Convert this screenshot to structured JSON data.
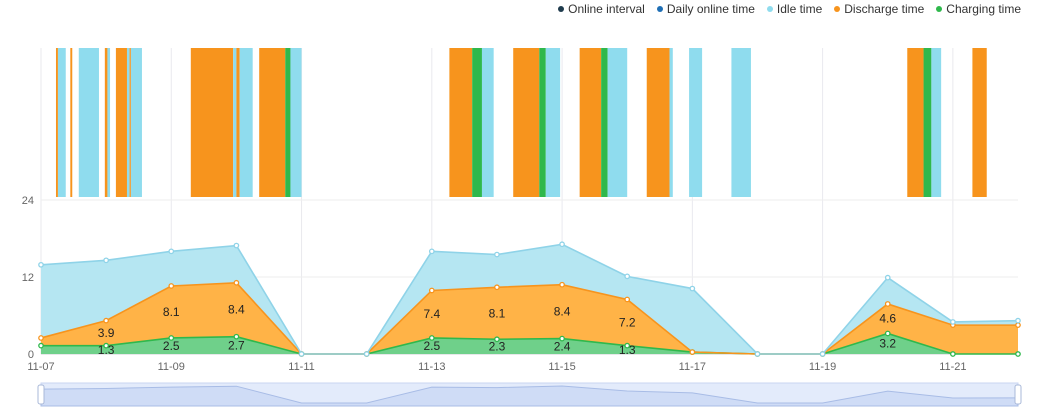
{
  "legend": {
    "items": [
      {
        "label": "Online interval",
        "color": "#1f3b4d"
      },
      {
        "label": "Daily online time",
        "color": "#1f6fb5"
      },
      {
        "label": "Idle time",
        "color": "#8fdcee"
      },
      {
        "label": "Discharge time",
        "color": "#f7941d"
      },
      {
        "label": "Charging time",
        "color": "#2fb84c"
      }
    ]
  },
  "chart_data": {
    "type": "area",
    "title": "",
    "x": [
      "11-07",
      "11-08",
      "11-09",
      "11-10",
      "11-11",
      "11-12",
      "11-13",
      "11-14",
      "11-15",
      "11-16",
      "11-17",
      "11-18",
      "11-19",
      "11-20",
      "11-21",
      "11-22"
    ],
    "x_tick_labels": [
      "11-07",
      "11-09",
      "11-11",
      "11-13",
      "11-15",
      "11-17",
      "11-19",
      "11-21"
    ],
    "ylim": [
      0,
      24
    ],
    "y_tick_labels": [
      "0",
      "12",
      "24"
    ],
    "series": [
      {
        "name": "Charging time",
        "color": "#2fb84c",
        "values": [
          1.3,
          1.3,
          2.5,
          2.7,
          0,
          0,
          2.5,
          2.3,
          2.4,
          1.3,
          0.3,
          0,
          0,
          3.2,
          0,
          0
        ]
      },
      {
        "name": "Discharge time",
        "color": "#f7941d",
        "values": [
          1.2,
          3.9,
          8.1,
          8.4,
          0,
          0,
          7.4,
          8.1,
          8.4,
          7.2,
          0,
          0,
          0,
          4.6,
          4.5,
          4.5
        ]
      },
      {
        "name": "Idle time",
        "color": "#8fdcee",
        "values": [
          11.4,
          9.4,
          5.4,
          5.8,
          0,
          0,
          6.1,
          5.1,
          6.3,
          3.6,
          9.9,
          0,
          0,
          4.1,
          0.5,
          0.7
        ]
      }
    ],
    "data_labels": [
      {
        "x": "11-08",
        "series": "Discharge time",
        "text": "3.9"
      },
      {
        "x": "11-09",
        "series": "Discharge time",
        "text": "8.1"
      },
      {
        "x": "11-10",
        "series": "Discharge time",
        "text": "8.4"
      },
      {
        "x": "11-13",
        "series": "Discharge time",
        "text": "7.4"
      },
      {
        "x": "11-14",
        "series": "Discharge time",
        "text": "8.1"
      },
      {
        "x": "11-15",
        "series": "Discharge time",
        "text": "8.4"
      },
      {
        "x": "11-16",
        "series": "Discharge time",
        "text": "7.2"
      },
      {
        "x": "11-20",
        "series": "Discharge time",
        "text": "4.6"
      },
      {
        "x": "11-08",
        "series": "Charging time",
        "text": "1.3"
      },
      {
        "x": "11-09",
        "series": "Charging time",
        "text": "2.5"
      },
      {
        "x": "11-10",
        "series": "Charging time",
        "text": "2.7"
      },
      {
        "x": "11-13",
        "series": "Charging time",
        "text": "2.5"
      },
      {
        "x": "11-14",
        "series": "Charging time",
        "text": "2.3"
      },
      {
        "x": "11-15",
        "series": "Charging time",
        "text": "2.4"
      },
      {
        "x": "11-16",
        "series": "Charging time",
        "text": "1.3"
      },
      {
        "x": "11-20",
        "series": "Charging time",
        "text": "3.2"
      }
    ],
    "timeline": {
      "type": "segments",
      "x_start": "11-07",
      "x_end": "11-22",
      "status_colors": {
        "idle": "#8fdcee",
        "discharge": "#f7941d",
        "charging": "#2fb84c"
      },
      "segments": [
        {
          "start": 0.23,
          "end": 0.26,
          "status": "discharge"
        },
        {
          "start": 0.26,
          "end": 0.38,
          "status": "idle"
        },
        {
          "start": 0.45,
          "end": 0.48,
          "status": "discharge"
        },
        {
          "start": 0.58,
          "end": 0.89,
          "status": "idle"
        },
        {
          "start": 0.98,
          "end": 1.02,
          "status": "discharge"
        },
        {
          "start": 1.02,
          "end": 1.06,
          "status": "idle"
        },
        {
          "start": 1.15,
          "end": 1.32,
          "status": "discharge"
        },
        {
          "start": 1.32,
          "end": 1.36,
          "status": "idle"
        },
        {
          "start": 1.36,
          "end": 1.38,
          "status": "discharge"
        },
        {
          "start": 1.38,
          "end": 1.55,
          "status": "idle"
        },
        {
          "start": 2.3,
          "end": 2.95,
          "status": "discharge"
        },
        {
          "start": 2.95,
          "end": 3.0,
          "status": "idle"
        },
        {
          "start": 3.0,
          "end": 3.05,
          "status": "discharge"
        },
        {
          "start": 3.05,
          "end": 3.25,
          "status": "idle"
        },
        {
          "start": 3.35,
          "end": 3.75,
          "status": "discharge"
        },
        {
          "start": 3.75,
          "end": 3.83,
          "status": "charging"
        },
        {
          "start": 3.83,
          "end": 4.0,
          "status": "idle"
        },
        {
          "start": 6.27,
          "end": 6.62,
          "status": "discharge"
        },
        {
          "start": 6.62,
          "end": 6.77,
          "status": "charging"
        },
        {
          "start": 6.77,
          "end": 6.95,
          "status": "idle"
        },
        {
          "start": 7.25,
          "end": 7.65,
          "status": "discharge"
        },
        {
          "start": 7.65,
          "end": 7.75,
          "status": "charging"
        },
        {
          "start": 7.75,
          "end": 7.97,
          "status": "idle"
        },
        {
          "start": 8.27,
          "end": 8.6,
          "status": "discharge"
        },
        {
          "start": 8.6,
          "end": 8.7,
          "status": "charging"
        },
        {
          "start": 8.7,
          "end": 9.0,
          "status": "idle"
        },
        {
          "start": 9.3,
          "end": 9.65,
          "status": "discharge"
        },
        {
          "start": 9.65,
          "end": 9.7,
          "status": "idle"
        },
        {
          "start": 9.95,
          "end": 10.15,
          "status": "idle"
        },
        {
          "start": 10.6,
          "end": 10.9,
          "status": "idle"
        },
        {
          "start": 13.3,
          "end": 13.55,
          "status": "discharge"
        },
        {
          "start": 13.55,
          "end": 13.67,
          "status": "charging"
        },
        {
          "start": 13.67,
          "end": 13.82,
          "status": "idle"
        },
        {
          "start": 14.3,
          "end": 14.52,
          "status": "discharge"
        }
      ]
    },
    "grid": true,
    "datazoom_slider": true
  }
}
